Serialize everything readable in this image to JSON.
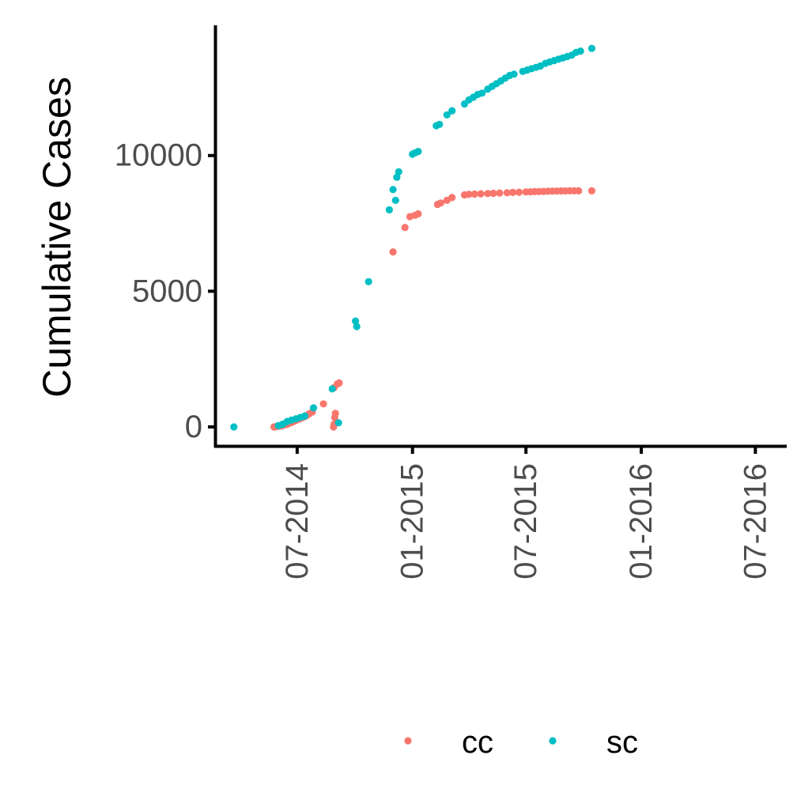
{
  "chart_data": {
    "type": "scatter",
    "title": "",
    "xlabel": "",
    "ylabel": "Cumulative Cases",
    "x_axis": {
      "type": "date",
      "range": [
        "2014-02-20",
        "2016-08-20"
      ],
      "ticks": [
        {
          "date": "2014-07-01",
          "label": "07-2014"
        },
        {
          "date": "2015-01-01",
          "label": "01-2015"
        },
        {
          "date": "2015-07-01",
          "label": "07-2015"
        },
        {
          "date": "2016-01-01",
          "label": "01-2016"
        },
        {
          "date": "2016-07-01",
          "label": "07-2016"
        }
      ]
    },
    "y_axis": {
      "range": [
        -700,
        14800
      ],
      "ticks": [
        {
          "value": 0,
          "label": "0"
        },
        {
          "value": 5000,
          "label": "5000"
        },
        {
          "value": 10000,
          "label": "10000"
        }
      ]
    },
    "grid": false,
    "legend_position": "bottom",
    "series": [
      {
        "name": "cc",
        "color": "#F8766D",
        "points": [
          [
            "2014-05-25",
            0
          ],
          [
            "2014-05-28",
            10
          ],
          [
            "2014-05-31",
            20
          ],
          [
            "2014-06-03",
            30
          ],
          [
            "2014-06-06",
            40
          ],
          [
            "2014-06-09",
            60
          ],
          [
            "2014-06-12",
            80
          ],
          [
            "2014-06-15",
            100
          ],
          [
            "2014-06-18",
            130
          ],
          [
            "2014-06-21",
            160
          ],
          [
            "2014-06-24",
            190
          ],
          [
            "2014-06-27",
            220
          ],
          [
            "2014-06-30",
            250
          ],
          [
            "2014-07-04",
            290
          ],
          [
            "2014-07-08",
            330
          ],
          [
            "2014-07-12",
            370
          ],
          [
            "2014-07-16",
            420
          ],
          [
            "2014-07-20",
            480
          ],
          [
            "2014-07-25",
            550
          ],
          [
            "2014-08-12",
            850
          ],
          [
            "2014-08-28",
            0
          ],
          [
            "2014-08-29",
            100
          ],
          [
            "2014-08-30",
            350
          ],
          [
            "2014-08-31",
            500
          ],
          [
            "2014-08-29",
            1450
          ],
          [
            "2014-09-03",
            1580
          ],
          [
            "2014-09-06",
            1620
          ],
          [
            "2014-12-01",
            6450
          ],
          [
            "2014-12-20",
            7350
          ],
          [
            "2014-12-28",
            7750
          ],
          [
            "2015-01-05",
            7800
          ],
          [
            "2015-01-10",
            7850
          ],
          [
            "2015-02-10",
            8200
          ],
          [
            "2015-02-15",
            8250
          ],
          [
            "2015-02-25",
            8350
          ],
          [
            "2015-03-05",
            8450
          ],
          [
            "2015-03-25",
            8550
          ],
          [
            "2015-04-01",
            8570
          ],
          [
            "2015-04-10",
            8580
          ],
          [
            "2015-04-20",
            8590
          ],
          [
            "2015-05-01",
            8600
          ],
          [
            "2015-05-10",
            8610
          ],
          [
            "2015-05-20",
            8620
          ],
          [
            "2015-06-01",
            8630
          ],
          [
            "2015-06-10",
            8640
          ],
          [
            "2015-06-20",
            8650
          ],
          [
            "2015-07-01",
            8660
          ],
          [
            "2015-07-08",
            8665
          ],
          [
            "2015-07-15",
            8670
          ],
          [
            "2015-07-22",
            8675
          ],
          [
            "2015-07-29",
            8680
          ],
          [
            "2015-08-05",
            8685
          ],
          [
            "2015-08-12",
            8690
          ],
          [
            "2015-08-19",
            8693
          ],
          [
            "2015-08-26",
            8695
          ],
          [
            "2015-09-02",
            8697
          ],
          [
            "2015-09-09",
            8698
          ],
          [
            "2015-09-16",
            8699
          ],
          [
            "2015-09-23",
            8700
          ],
          [
            "2015-10-14",
            8700
          ]
        ]
      },
      {
        "name": "sc",
        "color": "#00BFC4",
        "points": [
          [
            "2014-03-22",
            0
          ],
          [
            "2014-06-01",
            50
          ],
          [
            "2014-06-08",
            100
          ],
          [
            "2014-06-15",
            200
          ],
          [
            "2014-06-22",
            250
          ],
          [
            "2014-06-29",
            300
          ],
          [
            "2014-07-06",
            350
          ],
          [
            "2014-07-13",
            400
          ],
          [
            "2014-07-27",
            700
          ],
          [
            "2014-08-26",
            1400
          ],
          [
            "2014-09-05",
            150
          ],
          [
            "2014-10-02",
            3900
          ],
          [
            "2014-10-04",
            3700
          ],
          [
            "2014-10-23",
            5350
          ],
          [
            "2014-11-25",
            8000
          ],
          [
            "2014-12-01",
            8750
          ],
          [
            "2014-12-05",
            8350
          ],
          [
            "2014-12-07",
            9200
          ],
          [
            "2014-12-10",
            9400
          ],
          [
            "2015-01-01",
            10050
          ],
          [
            "2015-01-05",
            10100
          ],
          [
            "2015-01-10",
            10150
          ],
          [
            "2015-02-08",
            11100
          ],
          [
            "2015-02-13",
            11150
          ],
          [
            "2015-02-25",
            11500
          ],
          [
            "2015-03-05",
            11650
          ],
          [
            "2015-03-25",
            11900
          ],
          [
            "2015-04-01",
            12050
          ],
          [
            "2015-04-08",
            12150
          ],
          [
            "2015-04-15",
            12250
          ],
          [
            "2015-04-22",
            12300
          ],
          [
            "2015-05-01",
            12450
          ],
          [
            "2015-05-08",
            12550
          ],
          [
            "2015-05-15",
            12650
          ],
          [
            "2015-05-22",
            12750
          ],
          [
            "2015-05-29",
            12850
          ],
          [
            "2015-06-05",
            12950
          ],
          [
            "2015-06-12",
            13000
          ],
          [
            "2015-06-26",
            13100
          ],
          [
            "2015-07-03",
            13150
          ],
          [
            "2015-07-10",
            13200
          ],
          [
            "2015-07-17",
            13250
          ],
          [
            "2015-07-24",
            13300
          ],
          [
            "2015-08-01",
            13400
          ],
          [
            "2015-08-08",
            13450
          ],
          [
            "2015-08-15",
            13500
          ],
          [
            "2015-08-22",
            13550
          ],
          [
            "2015-08-29",
            13600
          ],
          [
            "2015-09-05",
            13650
          ],
          [
            "2015-09-12",
            13700
          ],
          [
            "2015-09-19",
            13800
          ],
          [
            "2015-09-26",
            13850
          ],
          [
            "2015-10-14",
            13950
          ]
        ]
      }
    ]
  }
}
